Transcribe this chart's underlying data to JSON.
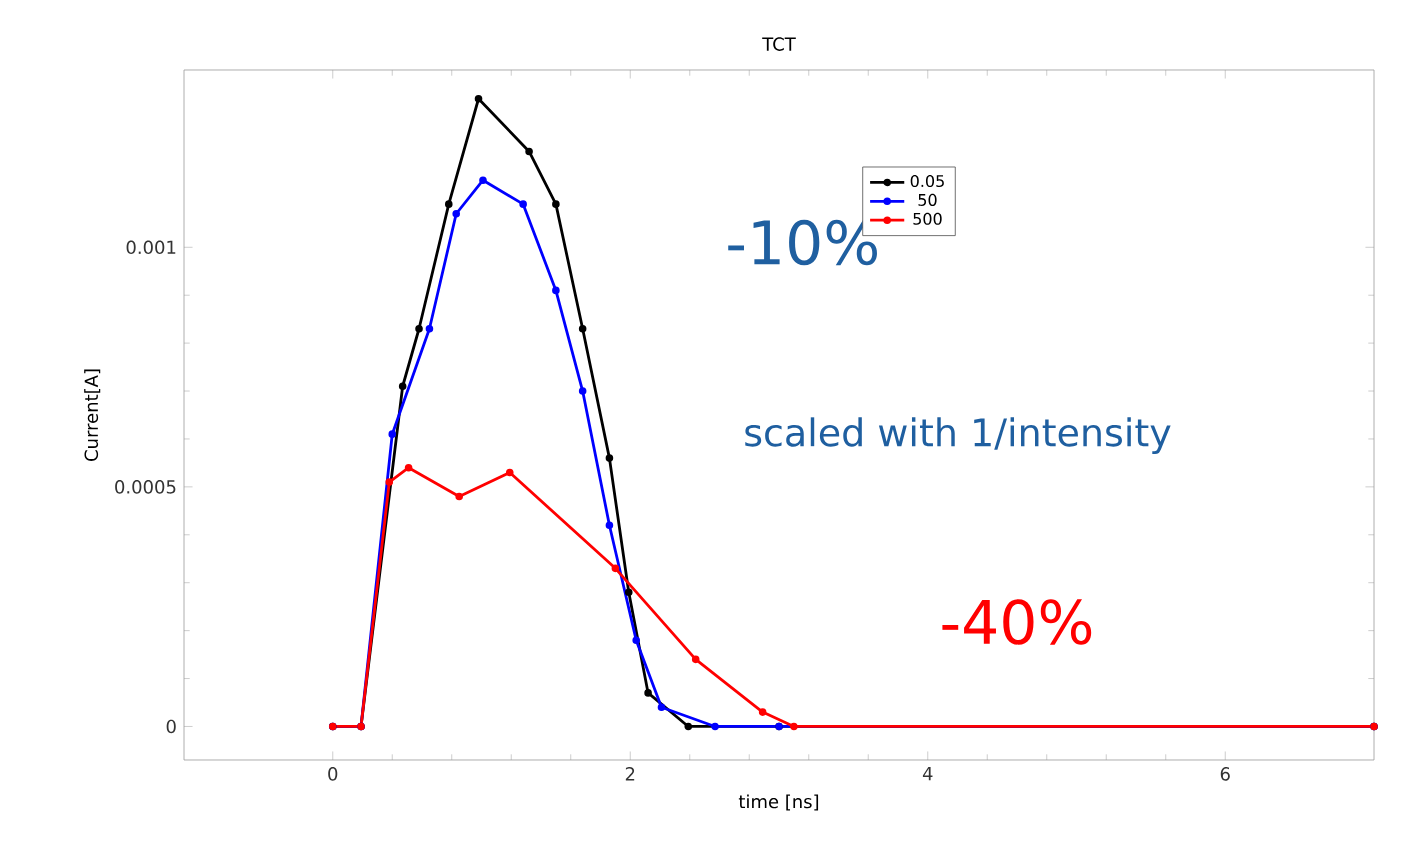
{
  "chart_data": {
    "type": "line",
    "title": "TCT",
    "xlabel": "time [ns]",
    "ylabel": "Current[A]",
    "xlim": [
      -1,
      7
    ],
    "ylim": [
      -7e-05,
      0.00137
    ],
    "xticks": [
      0,
      2,
      4,
      6
    ],
    "yticks": [
      0,
      0.0005,
      0.001
    ],
    "legend": "top right",
    "marker": "circle",
    "grid": false,
    "annotations": [
      "-10%",
      "scaled with 1/intensity",
      "-40%"
    ],
    "series": [
      {
        "name": "0.05",
        "color": "#000000",
        "x": [
          0,
          0.19,
          0.47,
          0.58,
          0.78,
          0.98,
          1.32,
          1.5,
          1.68,
          1.86,
          1.99,
          2.12,
          2.39,
          3.0,
          7.0
        ],
        "values": [
          0,
          0,
          0.00071,
          0.00083,
          0.00109,
          0.00131,
          0.0012,
          0.00109,
          0.00083,
          0.00056,
          0.00028,
          7e-05,
          0,
          0,
          0
        ]
      },
      {
        "name": "50",
        "color": "#0000ff",
        "x": [
          0,
          0.19,
          0.4,
          0.65,
          0.83,
          1.01,
          1.28,
          1.5,
          1.68,
          1.86,
          2.04,
          2.21,
          2.57,
          3.0,
          7.0
        ],
        "values": [
          0,
          0,
          0.00061,
          0.00083,
          0.00107,
          0.00114,
          0.00109,
          0.00091,
          0.0007,
          0.00042,
          0.00018,
          4e-05,
          0,
          0,
          0
        ]
      },
      {
        "name": "500",
        "color": "#ff0000",
        "x": [
          0,
          0.19,
          0.38,
          0.51,
          0.85,
          1.19,
          1.9,
          2.44,
          2.89,
          3.1,
          7.0
        ],
        "values": [
          0,
          0,
          0.00051,
          0.00054,
          0.00048,
          0.00053,
          0.00033,
          0.00014,
          3e-05,
          0,
          0
        ]
      }
    ]
  }
}
